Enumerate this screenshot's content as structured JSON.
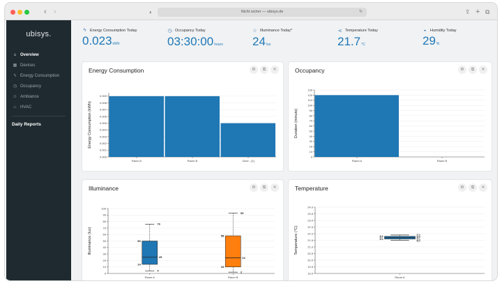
{
  "browser": {
    "url": "Nicht sicher — ubisys.de"
  },
  "sidebar": {
    "logo": "ubisys.",
    "items": [
      {
        "label": "Overview",
        "icon": "home-icon",
        "glyph": "⌂",
        "active": true
      },
      {
        "label": "Devices",
        "icon": "devices-icon",
        "glyph": "▦",
        "active": false
      },
      {
        "label": "Energy Consumption",
        "icon": "bolt-icon",
        "glyph": "ϟ",
        "active": false
      },
      {
        "label": "Occupancy",
        "icon": "clock-icon",
        "glyph": "◷",
        "active": false
      },
      {
        "label": "Ambiance",
        "icon": "people-icon",
        "glyph": "☺",
        "active": false
      },
      {
        "label": "HVAC",
        "icon": "thermometer-icon",
        "glyph": "♨",
        "active": false
      }
    ],
    "reports_label": "Daily Reports"
  },
  "kpis": [
    {
      "title": "Energy Consumption Today",
      "value": "0.023",
      "unit": "kWh",
      "icon": "bolt-icon",
      "glyph": "ϟ"
    },
    {
      "title": "Occupancy Today",
      "value": "03:30:00",
      "unit": "hours",
      "icon": "clock-icon",
      "glyph": "◷"
    },
    {
      "title": "Illuminance Today*",
      "value": "24",
      "unit": "lux",
      "icon": "star-icon",
      "glyph": "☆"
    },
    {
      "title": "Temperature Today",
      "value": "21.7",
      "unit": "°C",
      "icon": "share-icon",
      "glyph": "⋖"
    },
    {
      "title": "Humidity Today",
      "value": "29",
      "unit": "%",
      "icon": "drop-icon",
      "glyph": "◒"
    }
  ],
  "cards": {
    "energy": {
      "title": "Energy Consumption"
    },
    "occupancy": {
      "title": "Occupancy"
    },
    "illuminance": {
      "title": "Illuminance"
    },
    "temperature": {
      "title": "Temperature"
    }
  },
  "card_actions": {
    "settings": "⚙",
    "expand": "⧉",
    "close": "✕"
  },
  "colors": {
    "accent": "#1f77b4",
    "orange": "#ff7f0e",
    "sidebar": "#1f2a30"
  },
  "chart_data": [
    {
      "id": "energy",
      "type": "bar",
      "title": "Energy Consumption",
      "ylabel": "Energy Consumption (kWh)",
      "categories": [
        "Raum A",
        "Raum B",
        "Zone - [1]"
      ],
      "values": [
        0.009,
        0.009,
        0.005
      ],
      "ylim": [
        0,
        0.0095
      ],
      "yticks": [
        0,
        0.001,
        0.002,
        0.003,
        0.004,
        0.005,
        0.006,
        0.007,
        0.008,
        0.009
      ],
      "ytick_labels": [
        "0.000",
        "0.001",
        "0.002",
        "0.003",
        "0.004",
        "0.005",
        "0.006",
        "0.007",
        "0.008",
        "0.009"
      ],
      "color": "#1f77b4",
      "grid": true
    },
    {
      "id": "occupancy",
      "type": "bar",
      "title": "Occupancy",
      "ylabel": "Duration (minute)",
      "categories": [
        "Raum A",
        "Raum B"
      ],
      "values": [
        120,
        0
      ],
      "ylim": [
        0,
        130
      ],
      "yticks": [
        0,
        10,
        20,
        30,
        40,
        50,
        60,
        70,
        80,
        90,
        100,
        110,
        120,
        130
      ],
      "ytick_labels": [
        "0",
        "10",
        "20",
        "30",
        "40",
        "50",
        "60",
        "70",
        "80",
        "90",
        "100",
        "110",
        "120",
        "130"
      ],
      "color": "#1f77b4",
      "grid": true
    },
    {
      "id": "illuminance",
      "type": "box",
      "title": "Illuminance",
      "ylabel": "Illuminance (lux)",
      "categories": [
        "Raum A",
        "Raum B"
      ],
      "boxes": [
        {
          "min": 4,
          "q1": 14,
          "median": 25,
          "q3": 50,
          "max": 76,
          "color": "#1f77b4"
        },
        {
          "min": 2,
          "q1": 10,
          "median": 24,
          "q3": 58,
          "max": 93,
          "color": "#ff7f0e"
        }
      ],
      "box_labels": [
        {
          "min": "4",
          "q1": "14",
          "median": "25",
          "q3": "50",
          "max": "76"
        },
        {
          "min": "2",
          "q1": "10",
          "median": "24",
          "q3": "58",
          "max": "93"
        }
      ],
      "ylim": [
        0,
        100
      ],
      "yticks": [
        0,
        10,
        20,
        30,
        40,
        50,
        60,
        70,
        80,
        90,
        100
      ],
      "ytick_labels": [
        "0",
        "10",
        "20",
        "30",
        "40",
        "50",
        "60",
        "70",
        "80",
        "90",
        "100"
      ],
      "grid": true
    },
    {
      "id": "temperature",
      "type": "box",
      "title": "Temperature",
      "ylabel": "Temperature (°C)",
      "categories": [
        "Raum A"
      ],
      "boxes": [
        {
          "min": 21.5,
          "q1": 21.6,
          "median": 21.7,
          "q3": 21.8,
          "max": 21.9,
          "color": "#1f77b4"
        }
      ],
      "box_labels": [
        {
          "min": "21.5",
          "q1": "21.6",
          "median": "21.7",
          "q3": "21.8",
          "max": "21.9"
        }
      ],
      "ylim": [
        19.0,
        24.0
      ],
      "yticks": [
        19.0,
        19.5,
        20.0,
        20.5,
        21.0,
        21.5,
        22.0,
        22.5,
        23.0,
        23.5,
        24.0
      ],
      "ytick_labels": [
        "19.0",
        "19.5",
        "20.0",
        "20.5",
        "21.0",
        "21.5",
        "22.0",
        "22.5",
        "23.0",
        "23.5",
        "24.0"
      ],
      "grid": true
    }
  ]
}
